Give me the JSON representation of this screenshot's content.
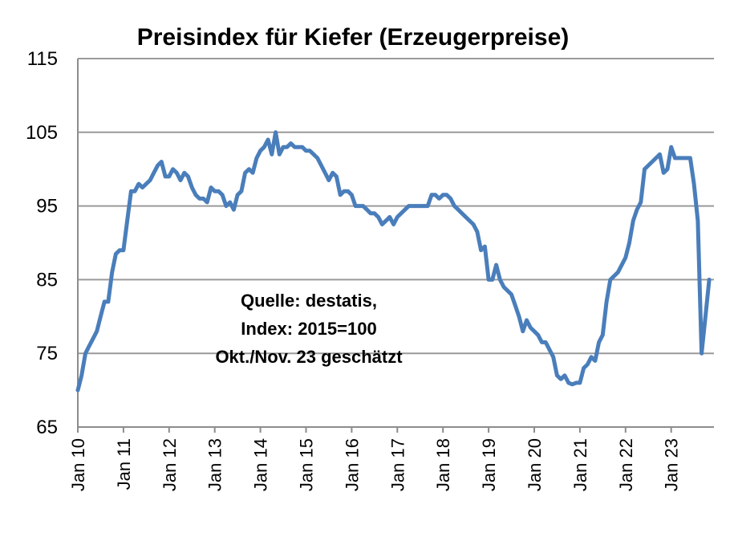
{
  "chart_data": {
    "type": "line",
    "title": "Preisindex für Kiefer (Erzeugerpreise)",
    "xlabel": "",
    "ylabel": "",
    "ylim": [
      65,
      115
    ],
    "yticks": [
      65,
      75,
      85,
      95,
      105,
      115
    ],
    "grid": true,
    "line_color": "#4a7ebb",
    "x_tick_labels": [
      "Jan 10",
      "Jan 11",
      "Jan 12",
      "Jan 13",
      "Jan 14",
      "Jan 15",
      "Jan 16",
      "Jan 17",
      "Jan 18",
      "Jan 19",
      "Jan 20",
      "Jan 21",
      "Jan 22",
      "Jan 23"
    ],
    "annotation": [
      "Quelle: destatis,",
      "Index: 2015=100",
      "Okt./Nov. 23 geschätzt"
    ],
    "series": [
      {
        "points": [
          [
            "2010-01",
            70.0
          ],
          [
            "2010-02",
            72.0
          ],
          [
            "2010-03",
            75.0
          ],
          [
            "2010-04",
            76.0
          ],
          [
            "2010-05",
            77.0
          ],
          [
            "2010-06",
            78.0
          ],
          [
            "2010-07",
            80.0
          ],
          [
            "2010-08",
            82.0
          ],
          [
            "2010-09",
            82.0
          ],
          [
            "2010-10",
            86.0
          ],
          [
            "2010-11",
            88.5
          ],
          [
            "2010-12",
            89.0
          ],
          [
            "2011-01",
            89.0
          ],
          [
            "2011-02",
            93.0
          ],
          [
            "2011-03",
            97.0
          ],
          [
            "2011-04",
            97.0
          ],
          [
            "2011-05",
            98.0
          ],
          [
            "2011-06",
            97.5
          ],
          [
            "2011-07",
            98.0
          ],
          [
            "2011-08",
            98.5
          ],
          [
            "2011-09",
            99.5
          ],
          [
            "2011-10",
            100.5
          ],
          [
            "2011-11",
            101.0
          ],
          [
            "2011-12",
            99.0
          ],
          [
            "2012-01",
            99.0
          ],
          [
            "2012-02",
            100.0
          ],
          [
            "2012-03",
            99.5
          ],
          [
            "2012-04",
            98.5
          ],
          [
            "2012-05",
            99.5
          ],
          [
            "2012-06",
            99.0
          ],
          [
            "2012-07",
            97.5
          ],
          [
            "2012-08",
            96.5
          ],
          [
            "2012-09",
            96.0
          ],
          [
            "2012-10",
            96.0
          ],
          [
            "2012-11",
            95.5
          ],
          [
            "2012-12",
            97.5
          ],
          [
            "2013-01",
            97.0
          ],
          [
            "2013-02",
            97.0
          ],
          [
            "2013-03",
            96.5
          ],
          [
            "2013-04",
            95.0
          ],
          [
            "2013-05",
            95.5
          ],
          [
            "2013-06",
            94.5
          ],
          [
            "2013-07",
            96.5
          ],
          [
            "2013-08",
            97.0
          ],
          [
            "2013-09",
            99.5
          ],
          [
            "2013-10",
            100.0
          ],
          [
            "2013-11",
            99.5
          ],
          [
            "2013-12",
            101.5
          ],
          [
            "2014-01",
            102.5
          ],
          [
            "2014-02",
            103.0
          ],
          [
            "2014-03",
            104.0
          ],
          [
            "2014-04",
            102.0
          ],
          [
            "2014-05",
            105.0
          ],
          [
            "2014-06",
            102.0
          ],
          [
            "2014-07",
            103.0
          ],
          [
            "2014-08",
            103.0
          ],
          [
            "2014-09",
            103.5
          ],
          [
            "2014-10",
            103.0
          ],
          [
            "2014-11",
            103.0
          ],
          [
            "2014-12",
            103.0
          ],
          [
            "2015-01",
            102.5
          ],
          [
            "2015-02",
            102.5
          ],
          [
            "2015-03",
            102.0
          ],
          [
            "2015-04",
            101.5
          ],
          [
            "2015-05",
            100.5
          ],
          [
            "2015-06",
            99.5
          ],
          [
            "2015-07",
            98.5
          ],
          [
            "2015-08",
            99.5
          ],
          [
            "2015-09",
            99.0
          ],
          [
            "2015-10",
            96.5
          ],
          [
            "2015-11",
            97.0
          ],
          [
            "2015-12",
            97.0
          ],
          [
            "2016-01",
            96.5
          ],
          [
            "2016-02",
            95.0
          ],
          [
            "2016-03",
            95.0
          ],
          [
            "2016-04",
            95.0
          ],
          [
            "2016-05",
            94.5
          ],
          [
            "2016-06",
            94.0
          ],
          [
            "2016-07",
            94.0
          ],
          [
            "2016-08",
            93.5
          ],
          [
            "2016-09",
            92.5
          ],
          [
            "2016-10",
            93.0
          ],
          [
            "2016-11",
            93.5
          ],
          [
            "2016-12",
            92.5
          ],
          [
            "2017-01",
            93.5
          ],
          [
            "2017-02",
            94.0
          ],
          [
            "2017-03",
            94.5
          ],
          [
            "2017-04",
            95.0
          ],
          [
            "2017-05",
            95.0
          ],
          [
            "2017-06",
            95.0
          ],
          [
            "2017-07",
            95.0
          ],
          [
            "2017-08",
            95.0
          ],
          [
            "2017-09",
            95.0
          ],
          [
            "2017-10",
            96.5
          ],
          [
            "2017-11",
            96.5
          ],
          [
            "2017-12",
            96.0
          ],
          [
            "2018-01",
            96.5
          ],
          [
            "2018-02",
            96.5
          ],
          [
            "2018-03",
            96.0
          ],
          [
            "2018-04",
            95.0
          ],
          [
            "2018-05",
            94.5
          ],
          [
            "2018-06",
            94.0
          ],
          [
            "2018-07",
            93.5
          ],
          [
            "2018-08",
            93.0
          ],
          [
            "2018-09",
            92.5
          ],
          [
            "2018-10",
            91.5
          ],
          [
            "2018-11",
            89.0
          ],
          [
            "2018-12",
            89.5
          ],
          [
            "2019-01",
            85.0
          ],
          [
            "2019-02",
            85.0
          ],
          [
            "2019-03",
            87.0
          ],
          [
            "2019-04",
            85.0
          ],
          [
            "2019-05",
            84.0
          ],
          [
            "2019-06",
            83.5
          ],
          [
            "2019-07",
            83.0
          ],
          [
            "2019-08",
            81.5
          ],
          [
            "2019-09",
            80.0
          ],
          [
            "2019-10",
            78.0
          ],
          [
            "2019-11",
            79.5
          ],
          [
            "2019-12",
            78.5
          ],
          [
            "2020-01",
            78.0
          ],
          [
            "2020-02",
            77.5
          ],
          [
            "2020-03",
            76.5
          ],
          [
            "2020-04",
            76.5
          ],
          [
            "2020-05",
            75.5
          ],
          [
            "2020-06",
            74.5
          ],
          [
            "2020-07",
            72.0
          ],
          [
            "2020-08",
            71.5
          ],
          [
            "2020-09",
            72.0
          ],
          [
            "2020-10",
            71.0
          ],
          [
            "2020-11",
            70.8
          ],
          [
            "2020-12",
            71.0
          ],
          [
            "2021-01",
            71.0
          ],
          [
            "2021-02",
            73.0
          ],
          [
            "2021-03",
            73.5
          ],
          [
            "2021-04",
            74.5
          ],
          [
            "2021-05",
            74.0
          ],
          [
            "2021-06",
            76.5
          ],
          [
            "2021-07",
            77.5
          ],
          [
            "2021-08",
            82.0
          ],
          [
            "2021-09",
            85.0
          ],
          [
            "2021-10",
            85.5
          ],
          [
            "2021-11",
            86.0
          ],
          [
            "2021-12",
            87.0
          ],
          [
            "2022-01",
            88.0
          ],
          [
            "2022-02",
            90.0
          ],
          [
            "2022-03",
            93.0
          ],
          [
            "2022-04",
            94.5
          ],
          [
            "2022-05",
            95.5
          ],
          [
            "2022-06",
            100.0
          ],
          [
            "2022-07",
            100.5
          ],
          [
            "2022-08",
            101.0
          ],
          [
            "2022-09",
            101.5
          ],
          [
            "2022-10",
            102.0
          ],
          [
            "2022-11",
            99.5
          ],
          [
            "2022-12",
            100.0
          ],
          [
            "2023-01",
            103.0
          ],
          [
            "2023-02",
            101.5
          ],
          [
            "2023-03",
            101.5
          ],
          [
            "2023-04",
            101.5
          ],
          [
            "2023-05",
            101.5
          ],
          [
            "2023-06",
            101.5
          ],
          [
            "2023-07",
            98.0
          ],
          [
            "2023-08",
            93.0
          ],
          [
            "2023-09",
            75.0
          ],
          [
            "2023-10",
            80.0
          ],
          [
            "2023-11",
            85.0
          ]
        ]
      }
    ]
  }
}
